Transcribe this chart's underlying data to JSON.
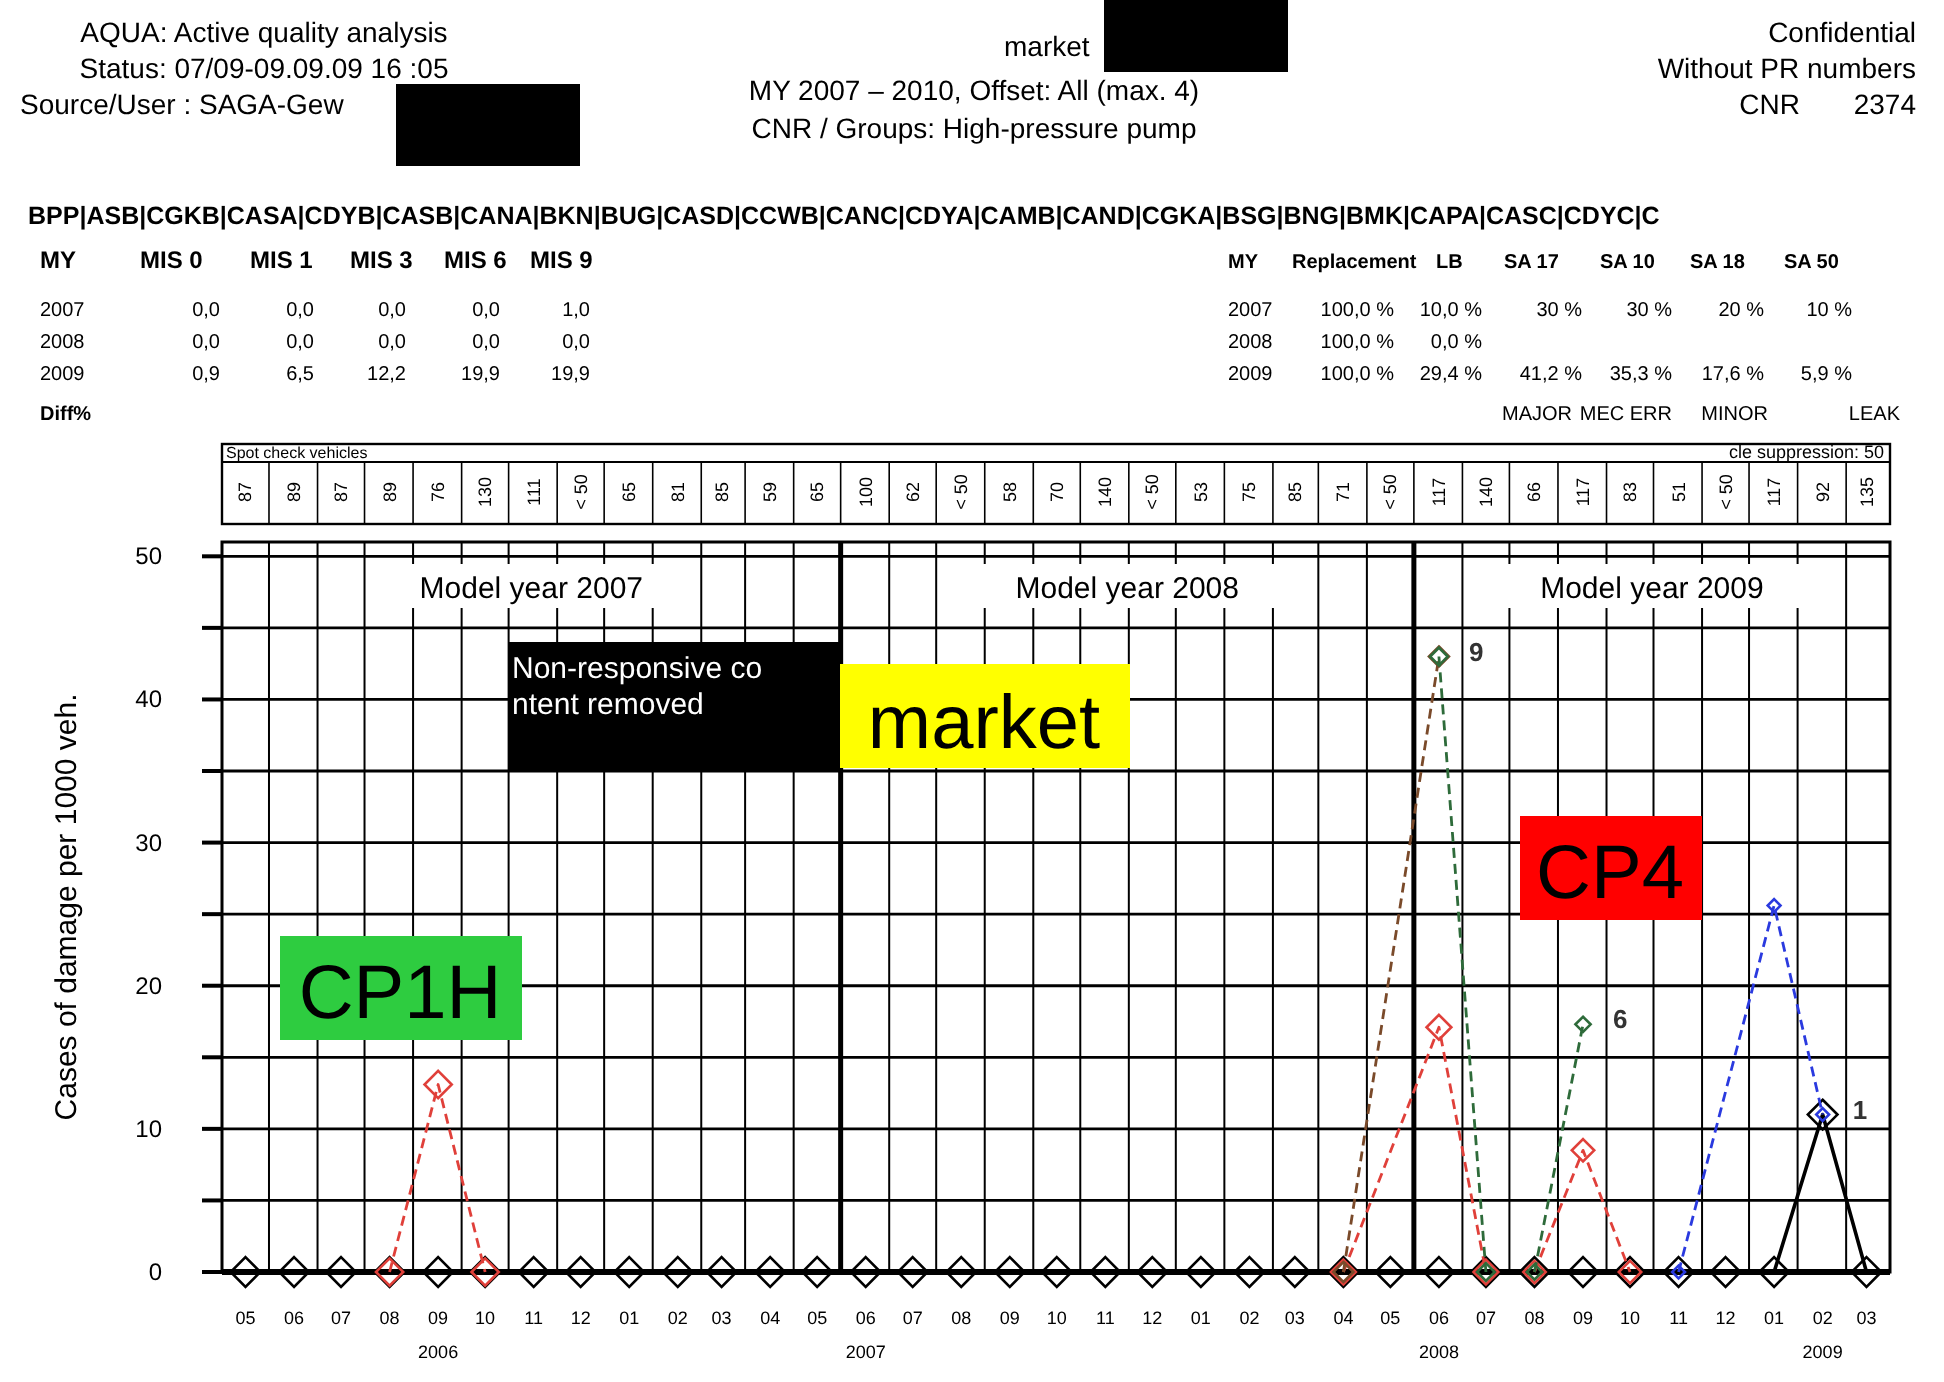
{
  "chart_data": {
    "type": "line",
    "ylabel": "Cases of damage per 1000 veh.",
    "x2label": "Spot check vehicles",
    "xlim": [
      "2006-04-16",
      "2009-03-16"
    ],
    "ylim": [
      0,
      51
    ],
    "yticks": [
      0,
      {
        "value": 5,
        "label": null
      },
      10,
      {
        "value": 15,
        "label": null
      },
      20,
      {
        "value": 25,
        "label": null
      },
      30,
      {
        "value": 35,
        "label": null
      },
      40,
      {
        "value": 45,
        "label": null
      },
      50
    ],
    "xticks": [
      {
        "value": "2006-05",
        "label": "05"
      },
      {
        "value": "2006-06",
        "label": "06"
      },
      {
        "value": "2006-07",
        "label": "07"
      },
      {
        "value": "2006-08",
        "label": "08"
      },
      {
        "value": "2006-09",
        "label": "09\n2006"
      },
      {
        "value": "2006-10",
        "label": "10"
      },
      {
        "value": "2006-11",
        "label": "11"
      },
      {
        "value": "2006-12",
        "label": "12"
      },
      {
        "value": "2007-01",
        "label": "01"
      },
      {
        "value": "2007-02",
        "label": "02"
      },
      {
        "value": "2007-03",
        "label": "03"
      },
      {
        "value": "2007-04",
        "label": "04"
      },
      {
        "value": "2007-05",
        "label": "05"
      },
      {
        "value": "2007-06",
        "label": "06\n2007"
      },
      {
        "value": "2007-07",
        "label": "07"
      },
      {
        "value": "2007-08",
        "label": "08"
      },
      {
        "value": "2007-09",
        "label": "09"
      },
      {
        "value": "2007-10",
        "label": "10"
      },
      {
        "value": "2007-11",
        "label": "11"
      },
      {
        "value": "2007-12",
        "label": "12"
      },
      {
        "value": "2008-01",
        "label": "01"
      },
      {
        "value": "2008-02",
        "label": "02"
      },
      {
        "value": "2008-03",
        "label": "03"
      },
      {
        "value": "2008-04",
        "label": "04"
      },
      {
        "value": "2008-05",
        "label": "05"
      },
      {
        "value": "2008-06",
        "label": "06\n2008"
      },
      {
        "value": "2008-07",
        "label": "07"
      },
      {
        "value": "2008-08",
        "label": "08"
      },
      {
        "value": "2008-09",
        "label": "09"
      },
      {
        "value": "2008-10",
        "label": "10"
      },
      {
        "value": "2008-11",
        "label": "11"
      },
      {
        "value": "2008-12",
        "label": "12"
      },
      {
        "value": "2009-01",
        "label": "01"
      },
      {
        "value": "2009-02",
        "label": "02\n2009"
      },
      {
        "value": "2009-03",
        "label": "03"
      },
      {
        "value": "2006-04-16",
        "label": null
      },
      {
        "value": "2006-05-16",
        "label": null
      },
      {
        "value": "2006-06-16",
        "label": null
      },
      {
        "value": "2006-07-16",
        "label": null
      },
      {
        "value": "2006-08-16",
        "label": null
      },
      {
        "value": "2006-09-16",
        "label": null
      },
      {
        "value": "2006-10-16",
        "label": null
      },
      {
        "value": "2006-11-16",
        "label": null
      },
      {
        "value": "2006-12-16",
        "label": null
      },
      {
        "value": "2007-01-16",
        "label": null
      },
      {
        "value": "2007-02-16",
        "label": null
      },
      {
        "value": "2007-03-16",
        "label": null
      },
      {
        "value": "2007-04-16",
        "label": null
      },
      {
        "value": "2007-06-16",
        "label": null
      },
      {
        "value": "2007-07-16",
        "label": null
      },
      {
        "value": "2007-08-16",
        "label": null
      },
      {
        "value": "2007-09-16",
        "label": null
      },
      {
        "value": "2007-10-16",
        "label": null
      },
      {
        "value": "2007-11-16",
        "label": null
      },
      {
        "value": "2007-12-16",
        "label": null
      },
      {
        "value": "2008-01-16",
        "label": null
      },
      {
        "value": "2008-02-16",
        "label": null
      },
      {
        "value": "2008-03-16",
        "label": null
      },
      {
        "value": "2008-04-16",
        "label": null
      },
      {
        "value": "2008-06-16",
        "label": null
      },
      {
        "value": "2008-07-16",
        "label": null
      },
      {
        "value": "2008-08-16",
        "label": null
      },
      {
        "value": "2008-09-16",
        "label": null
      },
      {
        "value": "2008-10-16",
        "label": null
      },
      {
        "value": "2008-11-16",
        "label": null
      },
      {
        "value": "2008-12-16",
        "label": null
      },
      {
        "value": "2009-01-16",
        "label": null
      },
      {
        "value": "2009-02-16",
        "label": null
      },
      {
        "value": "2009-03-16",
        "label": null
      }
    ],
    "x2lim": [
      "2006-04-16",
      "2009-03-16"
    ],
    "x2ticks": [
      {
        "value": "2006-05",
        "label": "87"
      },
      {
        "value": "2006-06",
        "label": "89"
      },
      {
        "value": "2006-07",
        "label": "87"
      },
      {
        "value": "2006-08",
        "label": "89"
      },
      {
        "value": "2006-09",
        "label": "76"
      },
      {
        "value": "2006-10",
        "label": "130"
      },
      {
        "value": "2006-11",
        "label": "111"
      },
      {
        "value": "2006-12",
        "label": "< 50"
      },
      {
        "value": "2007-01",
        "label": "65"
      },
      {
        "value": "2007-02",
        "label": "81"
      },
      {
        "value": "2007-03",
        "label": "85"
      },
      {
        "value": "2007-04",
        "label": "59"
      },
      {
        "value": "2007-05",
        "label": "65"
      },
      {
        "value": "2007-06",
        "label": "100"
      },
      {
        "value": "2007-07",
        "label": "62"
      },
      {
        "value": "2007-08",
        "label": "< 50"
      },
      {
        "value": "2007-09",
        "label": "58"
      },
      {
        "value": "2007-10",
        "label": "70"
      },
      {
        "value": "2007-11",
        "label": "140"
      },
      {
        "value": "2007-12",
        "label": "< 50"
      },
      {
        "value": "2008-01",
        "label": "53"
      },
      {
        "value": "2008-02",
        "label": "75"
      },
      {
        "value": "2008-03",
        "label": "85"
      },
      {
        "value": "2008-04",
        "label": "71"
      },
      {
        "value": "2008-05",
        "label": "< 50"
      },
      {
        "value": "2008-06",
        "label": "117"
      },
      {
        "value": "2008-07",
        "label": "140"
      },
      {
        "value": "2008-08",
        "label": "66"
      },
      {
        "value": "2008-09",
        "label": "117"
      },
      {
        "value": "2008-10",
        "label": "83"
      },
      {
        "value": "2008-11",
        "label": "51"
      },
      {
        "value": "2008-12",
        "label": "< 50"
      },
      {
        "value": "2009-01",
        "label": "117"
      },
      {
        "value": "2009-02",
        "label": "92"
      },
      {
        "value": "2009-03",
        "label": "135"
      }
    ],
    "grid": true,
    "marker": "diamond",
    "ref_lines": [
      {
        "axis": "x",
        "value": "2007-05-16"
      },
      {
        "axis": "x",
        "value": "2008-05-16"
      }
    ],
    "series": [
      {
        "color": "#000000",
        "line_style": "solid",
        "x": [
          "2006-05",
          "2006-06",
          "2006-07",
          "2006-08",
          "2006-09",
          "2006-10",
          "2006-11",
          "2006-12",
          "2007-01",
          "2007-02",
          "2007-03",
          "2007-04",
          "2007-05",
          "2007-06",
          "2007-07",
          "2007-08",
          "2007-09",
          "2007-10",
          "2007-11",
          "2007-12",
          "2008-01",
          "2008-02",
          "2008-03",
          "2008-04",
          "2008-05",
          "2008-06",
          "2008-07",
          "2008-08",
          "2008-09",
          "2008-10",
          "2008-11",
          "2008-12",
          "2009-01",
          "2009-02",
          "2009-03"
        ],
        "values": [
          0,
          0,
          0,
          0,
          0,
          0,
          0,
          0,
          0,
          0,
          0,
          0,
          0,
          0,
          0,
          0,
          0,
          0,
          0,
          0,
          0,
          0,
          0,
          0,
          0,
          0,
          0,
          0,
          0,
          0,
          0,
          0,
          0,
          11,
          0
        ]
      },
      {
        "color": "#e0403a",
        "line_style": "dashed",
        "x": [
          "2006-08",
          "2006-09",
          "2006-10"
        ],
        "values": [
          0,
          13.1,
          0
        ]
      },
      {
        "color": "#e0403a",
        "line_style": "dashed",
        "x": [
          "2008-04",
          "2008-06",
          "2008-07"
        ],
        "values": [
          0,
          17.1,
          0
        ]
      },
      {
        "color": "#e0403a",
        "line_style": "dashed",
        "x": [
          "2008-08",
          "2008-09",
          "2008-10"
        ],
        "values": [
          0,
          8.5,
          0
        ]
      },
      {
        "color": "#7a4a2a",
        "line_style": "dashed",
        "x": [
          "2008-04",
          "2008-06"
        ],
        "values": [
          0,
          43
        ]
      },
      {
        "color": "#2e6b3a",
        "line_style": "dashed",
        "x": [
          "2008-06",
          "2008-07"
        ],
        "values": [
          43,
          0
        ]
      },
      {
        "color": "#2e6b3a",
        "line_style": "dashed",
        "x": [
          "2008-08",
          "2008-09"
        ],
        "values": [
          0,
          17.3
        ]
      },
      {
        "color": "#2a3adf",
        "line_style": "dashed",
        "x": [
          "2008-11",
          "2009-01",
          "2009-02"
        ],
        "values": [
          0,
          25.6,
          11
        ]
      }
    ],
    "annotations": [
      "AQUA: Active quality analysis",
      "Status: 07/09-09.09.09 16 :05",
      "Source/User : SAGA-Gew",
      "market",
      "MY 2007 – 2010, Offset: All (max. 4)",
      "CNR / Groups: High-pressure pump",
      "Confidential",
      "Without PR numbers",
      "CNR\t2374",
      "BPP|ASB|CGKB|CASA|CDYB|CASB|CANA|BKN|BUG|CASD|CCWB|CANC|CDYA|CAMB|CAND|CGKA|BSG|BNG|BMK|CAPA|CASC|CDYC|C",
      "MY\tMIS 0\tMIS 1\tMIS 3\tMIS 6\tMIS 9",
      "2007\t0,0\t0,0\t0,0\t0,0\t1,0",
      "2008\t0,0\t0,0\t0,0\t0,0\t0,0",
      "2009\t0,9\t6,5\t12,2\t19,9\t19,9",
      "Diff%",
      "MY\tReplacement\tLB\tSA 17\tSA 10\tSA 18\tSA 50",
      "2007\t100,0 %\t10,0 %\t30 %\t30 %\t20 %\t10 %",
      "2008\t100,0 %\t0,0 %",
      "2009\t100,0 %\t29,4 %\t41,2 %\t35,3 %\t17,6 %\t5,9 %",
      "\t\t\tMAJOR\tMEC ERR\tMINOR\tLEAK",
      "cle suppression: 50",
      "Non-responsive co\nntent removed",
      "market",
      "CP4",
      "CP1H",
      "Model year 2007",
      "Model year 2008",
      "Model year 2009",
      {
        "text": "9",
        "x": "2008-06",
        "y": 43
      },
      {
        "text": "6",
        "x": "2008-09",
        "y": 17.3
      },
      {
        "text": "1",
        "x": "2009-02",
        "y": 11
      }
    ]
  }
}
